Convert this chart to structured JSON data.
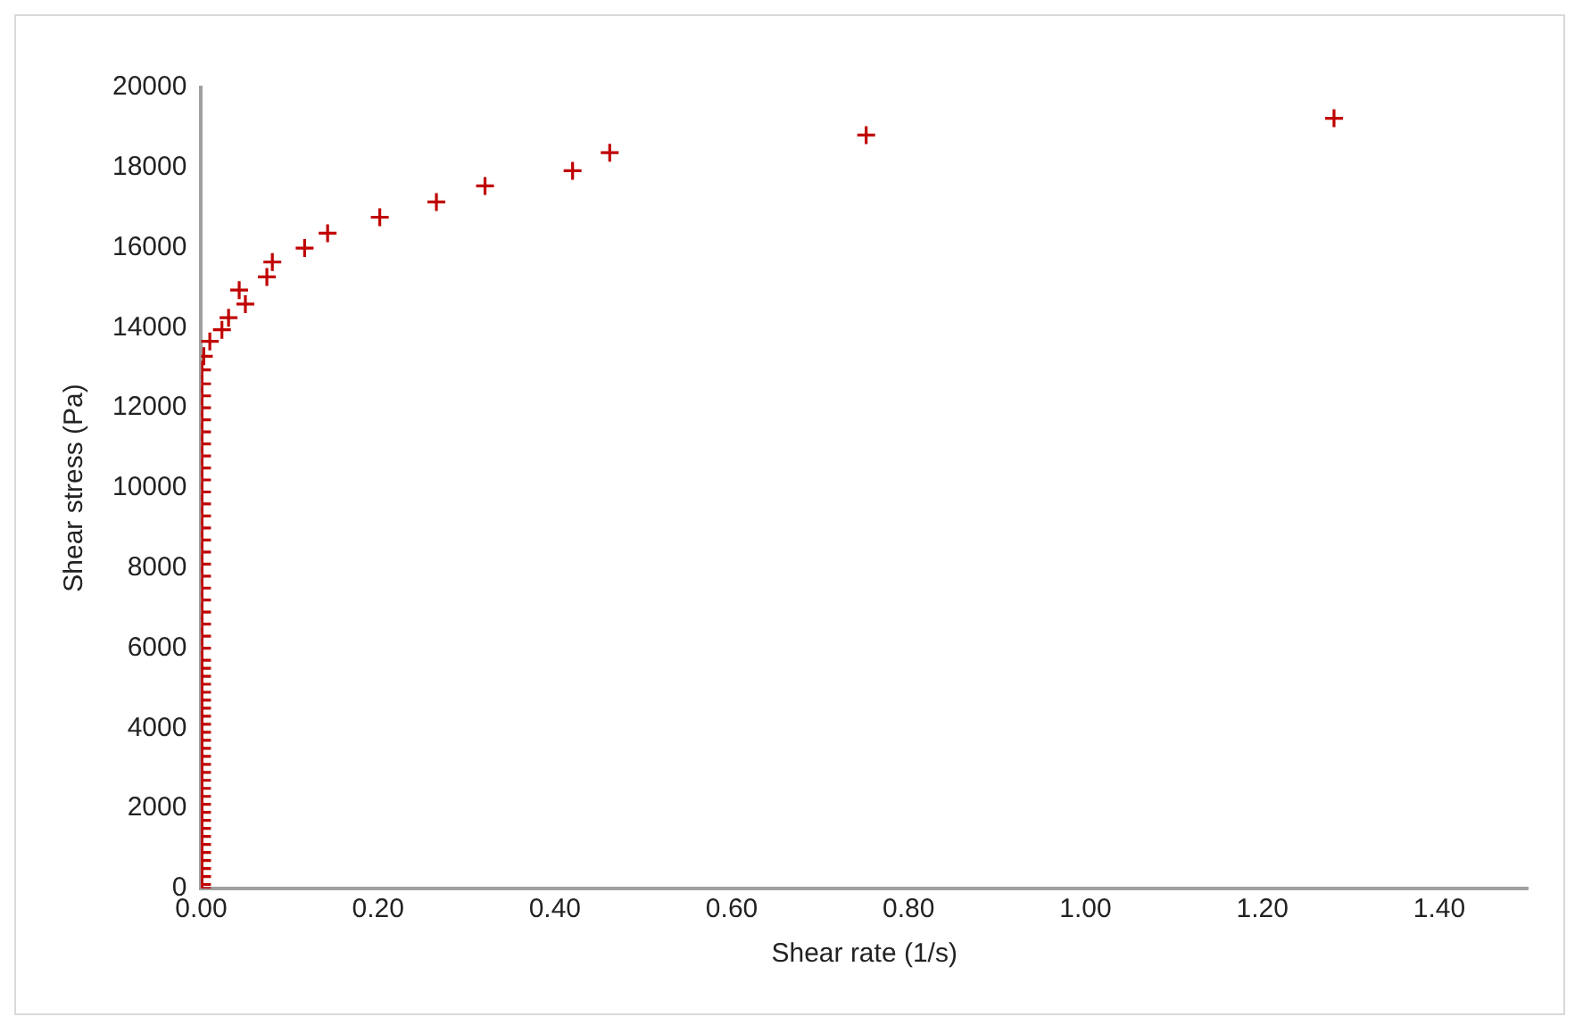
{
  "chart_data": {
    "type": "scatter",
    "xlabel": "Shear rate (1/s)",
    "ylabel": "Shear stress (Pa)",
    "marker": "cross",
    "grid": false,
    "legend": false,
    "xlim": [
      0,
      1.5
    ],
    "ylim": [
      0,
      20000
    ],
    "xticks": [
      {
        "value": 0,
        "label": "0.00"
      },
      {
        "value": 0.2,
        "label": "0.20"
      },
      {
        "value": 0.4,
        "label": "0.40"
      },
      {
        "value": 0.6,
        "label": "0.60"
      },
      {
        "value": 0.8,
        "label": "0.80"
      },
      {
        "value": 1.0,
        "label": "1.00"
      },
      {
        "value": 1.2,
        "label": "1.20"
      },
      {
        "value": 1.4,
        "label": "1.40"
      }
    ],
    "yticks": [
      0,
      2000,
      4000,
      6000,
      8000,
      10000,
      12000,
      14000,
      16000,
      18000,
      20000
    ],
    "series": [
      {
        "color": "#c00000",
        "x": [
          0.001,
          0.001,
          0.001,
          0.001,
          0.001,
          0.001,
          0.001,
          0.001,
          0.001,
          0.001,
          0.001,
          0.001,
          0.001,
          0.001,
          0.001,
          0.001,
          0.001,
          0.001,
          0.001,
          0.001,
          0.001,
          0.001,
          0.001,
          0.001,
          0.001,
          0.001,
          0.001,
          0.001,
          0.001,
          0.001,
          0.001,
          0.001,
          0.001,
          0.001,
          0.001,
          0.001,
          0.001,
          0.001,
          0.001,
          0.001,
          0.001,
          0.001,
          0.001,
          0.001,
          0.001,
          0.001,
          0.001,
          0.001,
          0.001,
          0.001,
          0.001,
          0.001,
          0.001,
          0.001,
          0.003,
          0.0098,
          0.0235,
          0.031,
          0.043,
          0.05,
          0.0743,
          0.0805,
          0.117,
          0.143,
          0.202,
          0.266,
          0.321,
          0.42,
          0.462,
          0.752,
          1.281
        ],
        "values": [
          0,
          100,
          300,
          500,
          700,
          900,
          1100,
          1300,
          1500,
          1700,
          1900,
          2100,
          2300,
          2500,
          2700,
          2900,
          3100,
          3300,
          3500,
          3700,
          3900,
          4100,
          4300,
          4500,
          4700,
          4900,
          5100,
          5300,
          5500,
          5700,
          6000,
          6300,
          6600,
          6900,
          7200,
          7500,
          7800,
          8100,
          8400,
          8700,
          9000,
          9300,
          9600,
          9900,
          10200,
          10500,
          10800,
          11100,
          11400,
          11700,
          12000,
          12300,
          12600,
          12950,
          13290,
          13660,
          13950,
          14250,
          14940,
          14590,
          15270,
          15640,
          15990,
          16360,
          16760,
          17140,
          17540,
          17920,
          18370,
          18810,
          19230
        ]
      }
    ]
  }
}
